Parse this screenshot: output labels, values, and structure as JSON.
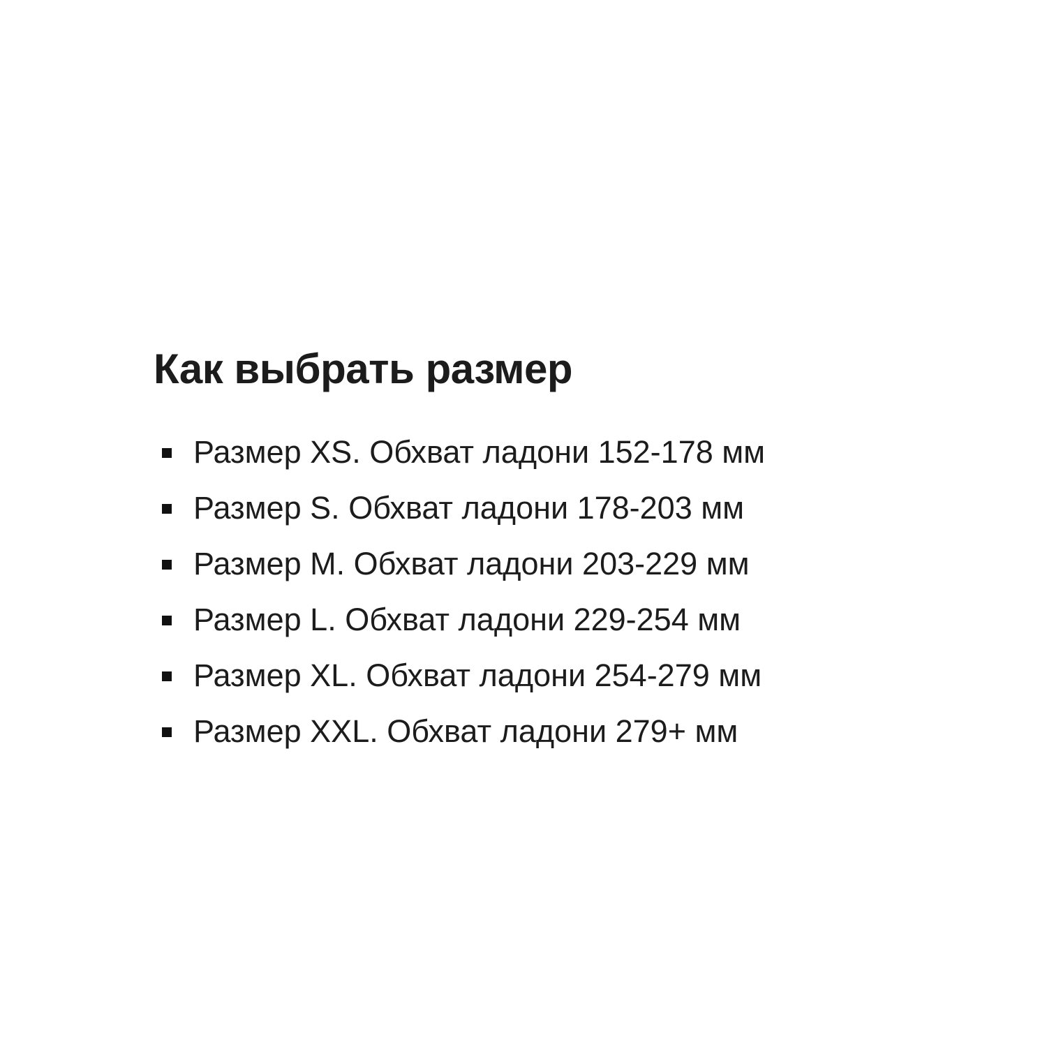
{
  "content": {
    "heading": "Как выбрать размер",
    "items": [
      "Размер XS. Обхват ладони 152-178 мм",
      "Размер S. Обхват ладони 178-203 мм",
      "Размер M. Обхват ладони 203-229 мм",
      "Размер L. Обхват ладони 229-254 мм",
      "Размер XL. Обхват ладони 254-279 мм",
      "Размер XXL. Обхват ладони 279+ мм"
    ],
    "colors": {
      "text": "#1c1c1c",
      "background": "#ffffff",
      "bullet": "#111111"
    }
  }
}
